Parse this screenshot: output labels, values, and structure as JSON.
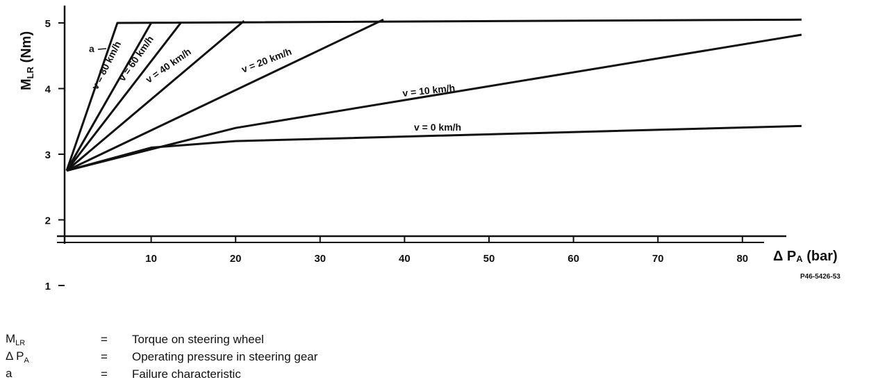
{
  "chart_data": {
    "type": "line",
    "title": "",
    "xlabel": {
      "prefix": "Δ P",
      "sub": "A",
      "suffix": " (bar)"
    },
    "ylabel": {
      "prefix": "M",
      "sub": "LR",
      "suffix": " (Nm)"
    },
    "xlim": [
      0,
      87
    ],
    "ylim": [
      0.7,
      5.4
    ],
    "xticks": [
      10,
      20,
      30,
      40,
      50,
      60,
      70,
      80
    ],
    "yticks": [
      1,
      2,
      3,
      4,
      5
    ],
    "grid": false,
    "series": [
      {
        "name": "a",
        "points": [
          [
            0,
            2.75
          ],
          [
            6,
            5.0
          ],
          [
            87,
            5.05
          ]
        ]
      },
      {
        "name": "v = 80 km/h",
        "points": [
          [
            0,
            2.75
          ],
          [
            10,
            5.0
          ]
        ]
      },
      {
        "name": "v = 60 km/h",
        "points": [
          [
            0,
            2.75
          ],
          [
            13.5,
            5.0
          ]
        ]
      },
      {
        "name": "v = 40 km/h",
        "points": [
          [
            0,
            2.75
          ],
          [
            21,
            5.03
          ]
        ]
      },
      {
        "name": "v = 20 km/h",
        "points": [
          [
            0,
            2.75
          ],
          [
            37.5,
            5.05
          ]
        ]
      },
      {
        "name": "v = 10 km/h",
        "points": [
          [
            0,
            2.75
          ],
          [
            20,
            3.4
          ],
          [
            87,
            4.82
          ]
        ]
      },
      {
        "name": "v = 0 km/h",
        "points": [
          [
            0,
            2.75
          ],
          [
            10,
            3.1
          ],
          [
            20,
            3.2
          ],
          [
            87,
            3.43
          ]
        ]
      }
    ],
    "annotations": [
      "a",
      "v = 80 km/h",
      "v = 60 km/h",
      "v = 40 km/h",
      "v = 20 km/h",
      "v = 10 km/h",
      "v = 0 km/h"
    ],
    "figure_code": "P46-5426-53"
  },
  "legend": [
    {
      "sym": "M",
      "sub": "LR",
      "eq": "=",
      "desc": "Torque on steering wheel"
    },
    {
      "sym": "Δ P",
      "sub": "A",
      "eq": "=",
      "desc": "Operating pressure in steering gear"
    },
    {
      "sym": "a",
      "sub": "",
      "eq": "=",
      "desc": "Failure characteristic"
    }
  ]
}
